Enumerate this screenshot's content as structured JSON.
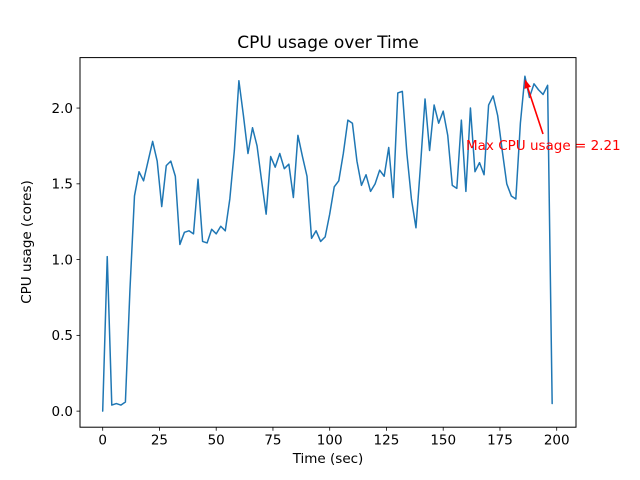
{
  "figure": {
    "background": "#ffffff",
    "text_color": "#000000"
  },
  "chart_data": {
    "type": "line",
    "title": "CPU usage over Time",
    "xlabel": "Time (sec)",
    "ylabel": "CPU usage (cores)",
    "line_color": "#1f77b4",
    "line_width": 1.5,
    "grid": false,
    "legend": "none",
    "xlim": [
      -10,
      208.5
    ],
    "ylim": [
      -0.106,
      2.333
    ],
    "xticks": [
      0,
      25,
      50,
      75,
      100,
      125,
      150,
      175,
      200
    ],
    "xtick_labels": [
      "0",
      "25",
      "50",
      "75",
      "100",
      "125",
      "150",
      "175",
      "200"
    ],
    "yticks": [
      0.0,
      0.5,
      1.0,
      1.5,
      2.0
    ],
    "ytick_labels": [
      "0.0",
      "0.5",
      "1.0",
      "1.5",
      "2.0"
    ],
    "x": [
      0,
      2,
      4,
      6,
      8,
      10,
      12,
      14,
      16,
      18,
      20,
      22,
      24,
      26,
      28,
      30,
      32,
      34,
      36,
      38,
      40,
      42,
      44,
      46,
      48,
      50,
      52,
      54,
      56,
      58,
      60,
      62,
      64,
      66,
      68,
      70,
      72,
      74,
      76,
      78,
      80,
      82,
      84,
      86,
      88,
      90,
      92,
      94,
      96,
      98,
      100,
      102,
      104,
      106,
      108,
      110,
      112,
      114,
      116,
      118,
      120,
      122,
      124,
      126,
      128,
      130,
      132,
      134,
      136,
      138,
      140,
      142,
      144,
      146,
      148,
      150,
      152,
      154,
      156,
      158,
      160,
      162,
      164,
      166,
      168,
      170,
      172,
      174,
      176,
      178,
      180,
      182,
      184,
      186,
      188,
      190,
      192,
      194,
      196,
      198
    ],
    "y": [
      0.0,
      1.02,
      0.04,
      0.05,
      0.04,
      0.06,
      0.8,
      1.42,
      1.58,
      1.52,
      1.65,
      1.78,
      1.65,
      1.35,
      1.62,
      1.65,
      1.55,
      1.1,
      1.18,
      1.19,
      1.17,
      1.53,
      1.12,
      1.11,
      1.2,
      1.17,
      1.22,
      1.19,
      1.4,
      1.72,
      2.18,
      1.95,
      1.7,
      1.87,
      1.75,
      1.52,
      1.3,
      1.68,
      1.61,
      1.7,
      1.6,
      1.63,
      1.41,
      1.82,
      1.68,
      1.55,
      1.14,
      1.19,
      1.12,
      1.15,
      1.3,
      1.48,
      1.52,
      1.7,
      1.92,
      1.9,
      1.65,
      1.49,
      1.56,
      1.45,
      1.5,
      1.59,
      1.55,
      1.74,
      1.41,
      2.1,
      2.11,
      1.7,
      1.4,
      1.21,
      1.62,
      2.06,
      1.72,
      2.02,
      1.9,
      1.98,
      1.82,
      1.49,
      1.47,
      1.92,
      1.45,
      2.0,
      1.58,
      1.64,
      1.56,
      2.02,
      2.08,
      1.95,
      1.72,
      1.5,
      1.42,
      1.4,
      1.9,
      2.21,
      2.07,
      2.16,
      2.12,
      2.09,
      2.15,
      0.05
    ],
    "annotation": {
      "text": "Max CPU usage = 2.21",
      "color": "#ff0000",
      "max_value": 2.21,
      "point": {
        "x": 186,
        "y": 2.21
      }
    }
  }
}
